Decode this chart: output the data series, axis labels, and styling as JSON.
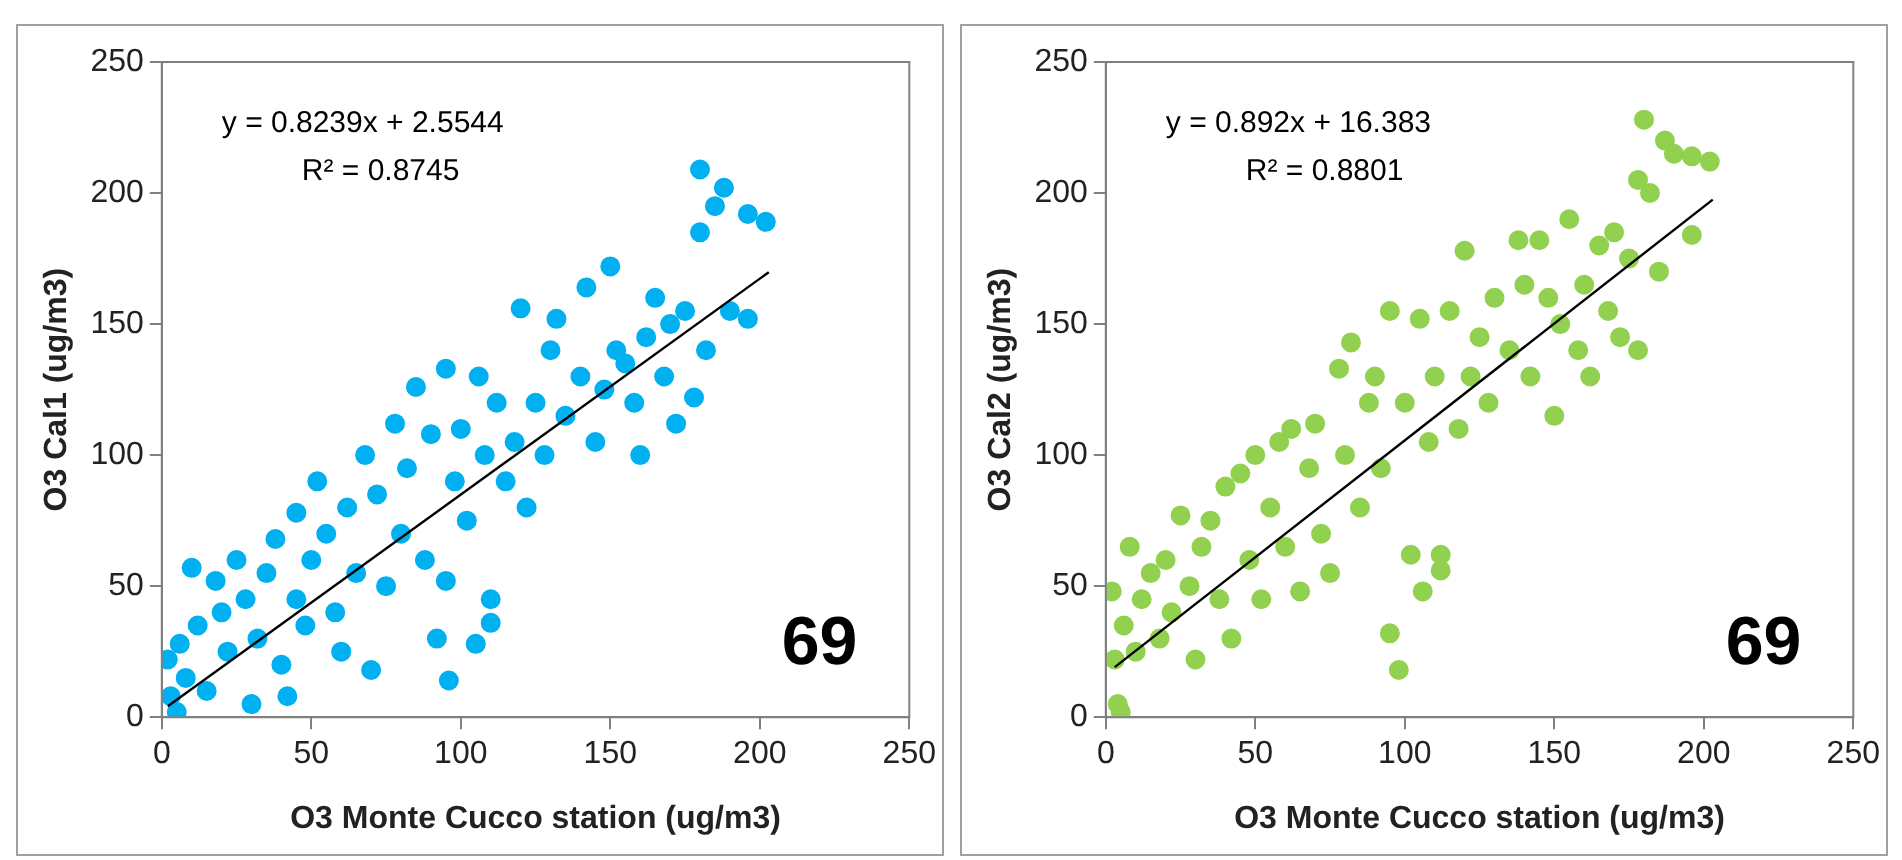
{
  "chart_data": [
    {
      "type": "scatter",
      "xlabel": "O3 Monte Cucco station (ug/m3)",
      "ylabel": "O3 Cal1 (ug/m3)",
      "xlim": [
        0,
        250
      ],
      "ylim": [
        0,
        250
      ],
      "xticks": [
        0,
        50,
        100,
        150,
        200,
        250
      ],
      "yticks": [
        0,
        50,
        100,
        150,
        200,
        250
      ],
      "grid": false,
      "legend": false,
      "marker": "circle",
      "annotations": [
        "y = 0.8239x + 2.5544",
        "R² = 0.8745",
        "69"
      ],
      "series": [
        {
          "type": "scatter",
          "color": "#00b0f0",
          "x": [
            2,
            3,
            5,
            6,
            8,
            10,
            12,
            15,
            18,
            20,
            22,
            25,
            28,
            30,
            32,
            35,
            38,
            40,
            42,
            45,
            45,
            48,
            50,
            52,
            55,
            58,
            60,
            62,
            65,
            68,
            70,
            72,
            75,
            78,
            80,
            82,
            85,
            88,
            90,
            92,
            95,
            95,
            96,
            98,
            100,
            102,
            105,
            106,
            108,
            110,
            110,
            112,
            115,
            118,
            120,
            122,
            125,
            128,
            130,
            132,
            135,
            140,
            142,
            145,
            148,
            150,
            152,
            155,
            158,
            160,
            162,
            165,
            168,
            170,
            172,
            175,
            178,
            180,
            180,
            182,
            185,
            188,
            190,
            196,
            196,
            202
          ],
          "values": [
            22,
            8,
            2,
            28,
            15,
            57,
            35,
            10,
            52,
            40,
            25,
            60,
            45,
            5,
            30,
            55,
            68,
            20,
            8,
            78,
            45,
            35,
            60,
            90,
            70,
            40,
            25,
            80,
            55,
            100,
            18,
            85,
            50,
            112,
            70,
            95,
            126,
            60,
            108,
            30,
            133,
            52,
            14,
            90,
            110,
            75,
            28,
            130,
            100,
            45,
            36,
            120,
            90,
            105,
            156,
            80,
            120,
            100,
            140,
            152,
            115,
            130,
            164,
            105,
            125,
            172,
            140,
            135,
            120,
            100,
            145,
            160,
            130,
            150,
            112,
            155,
            122,
            185,
            209,
            140,
            195,
            202,
            155,
            192,
            152,
            189
          ]
        },
        {
          "type": "line",
          "color": "#000000",
          "x": [
            2,
            203
          ],
          "values": [
            4.2,
            169.8
          ],
          "marker": "none"
        }
      ]
    },
    {
      "type": "scatter",
      "xlabel": "O3 Monte Cucco station (ug/m3)",
      "ylabel": "O3 Cal2 (ug/m3)",
      "xlim": [
        0,
        250
      ],
      "ylim": [
        0,
        250
      ],
      "xticks": [
        0,
        50,
        100,
        150,
        200,
        250
      ],
      "yticks": [
        0,
        50,
        100,
        150,
        200,
        250
      ],
      "grid": false,
      "legend": false,
      "marker": "circle",
      "annotations": [
        "y = 0.892x + 16.383",
        "R² = 0.8801",
        "69"
      ],
      "series": [
        {
          "type": "scatter",
          "color": "#92d050",
          "x": [
            2,
            3,
            4,
            5,
            6,
            8,
            10,
            12,
            15,
            18,
            20,
            22,
            25,
            28,
            30,
            32,
            35,
            38,
            40,
            42,
            45,
            48,
            50,
            52,
            55,
            58,
            60,
            62,
            65,
            68,
            70,
            72,
            75,
            78,
            80,
            82,
            85,
            88,
            90,
            92,
            95,
            95,
            98,
            100,
            102,
            105,
            106,
            108,
            110,
            112,
            112,
            115,
            118,
            120,
            122,
            125,
            128,
            130,
            135,
            138,
            140,
            142,
            145,
            148,
            150,
            152,
            155,
            158,
            160,
            162,
            165,
            168,
            170,
            172,
            175,
            178,
            178,
            180,
            182,
            185,
            187,
            190,
            196,
            196,
            202
          ],
          "values": [
            48,
            22,
            5,
            2,
            35,
            65,
            25,
            45,
            55,
            30,
            60,
            40,
            77,
            50,
            22,
            65,
            75,
            45,
            88,
            30,
            93,
            60,
            100,
            45,
            80,
            105,
            65,
            110,
            48,
            95,
            112,
            70,
            55,
            133,
            100,
            143,
            80,
            120,
            130,
            95,
            155,
            32,
            18,
            120,
            62,
            152,
            48,
            105,
            130,
            62,
            56,
            155,
            110,
            178,
            130,
            145,
            120,
            160,
            140,
            182,
            165,
            130,
            182,
            160,
            115,
            150,
            190,
            140,
            165,
            130,
            180,
            155,
            185,
            145,
            175,
            140,
            205,
            228,
            200,
            170,
            220,
            215,
            214,
            184,
            212
          ]
        },
        {
          "type": "line",
          "color": "#000000",
          "x": [
            3,
            203
          ],
          "values": [
            19.1,
            197.5
          ],
          "marker": "none"
        }
      ]
    }
  ]
}
